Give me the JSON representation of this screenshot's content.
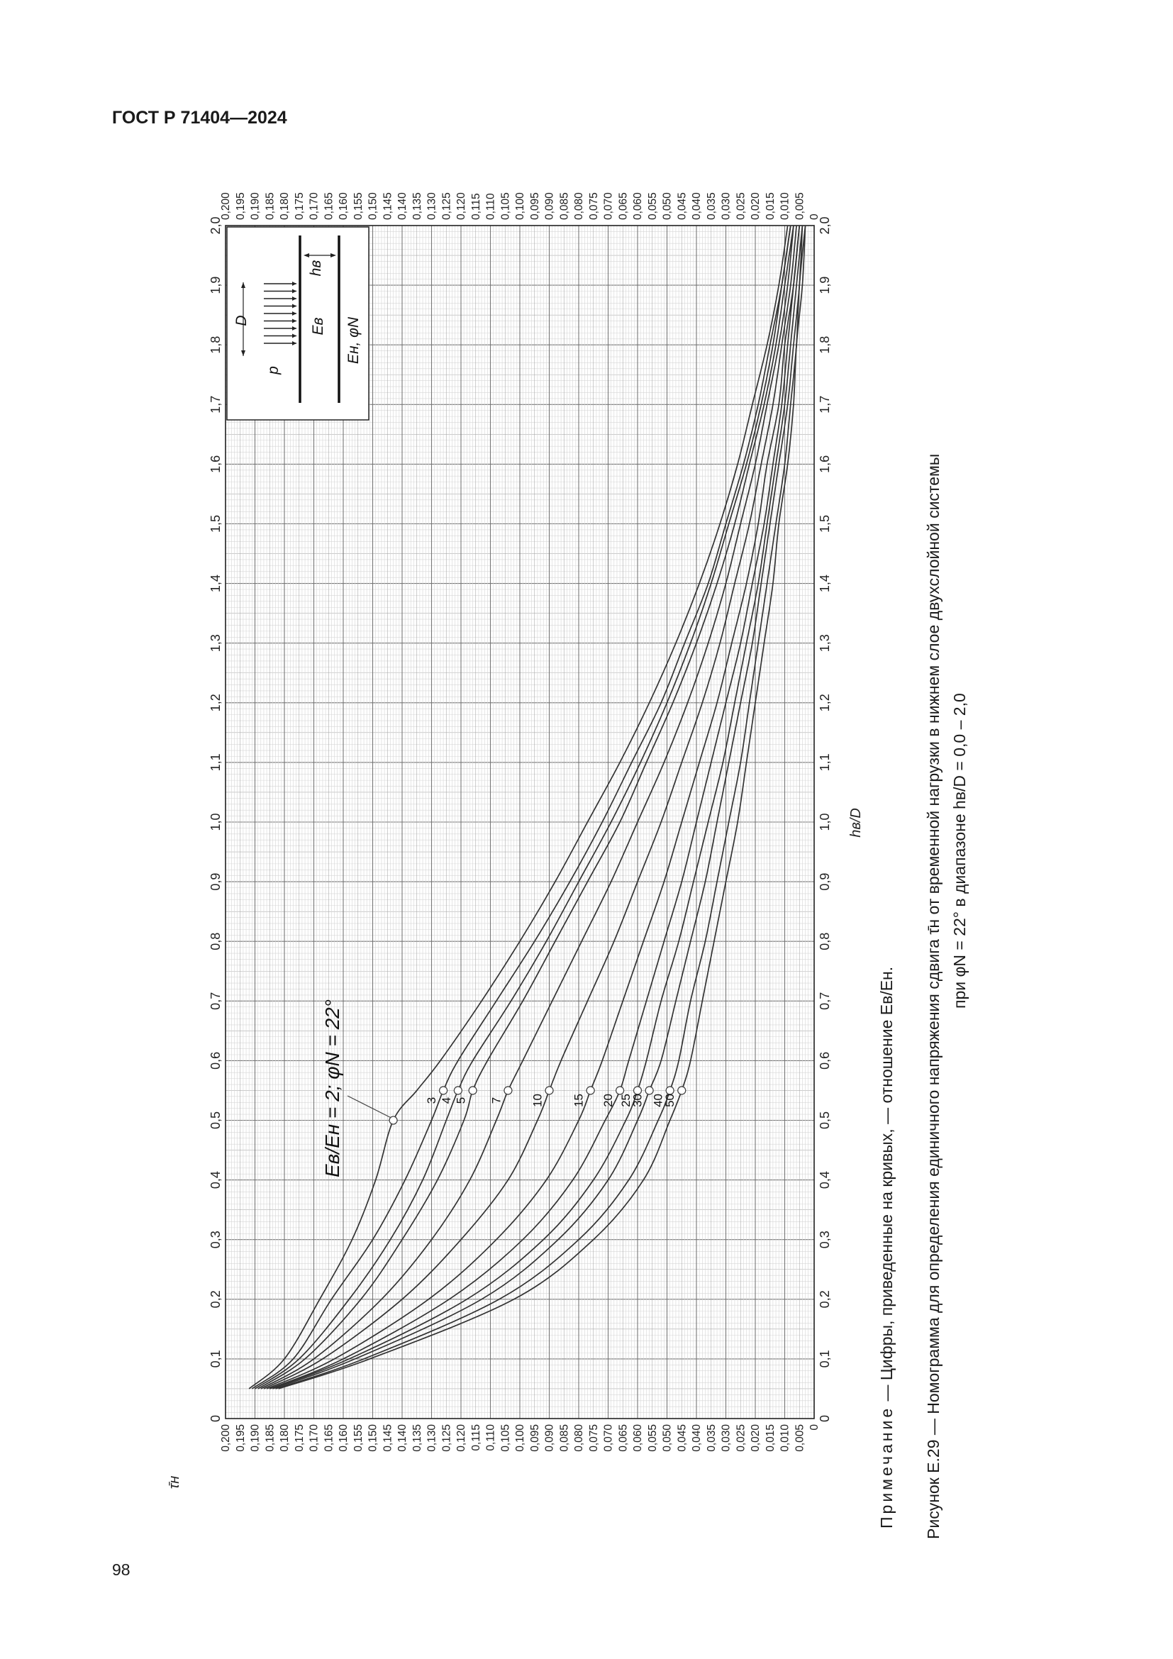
{
  "document": {
    "header": "ГОСТ Р 71404—2024",
    "page_number": "98",
    "note_label": "Примечание",
    "note_text": " — Цифры, приведенные на кривых, — отношение Eв/Eн.",
    "caption_line1": "Рисунок Е.29 — Номограмма для определения единичного напряжения сдвига τ̄н от временной нагрузки в нижнем слое двухслойной системы",
    "caption_line2": "при φN = 22° в диапазоне hв/D = 0,0 – 2,0"
  },
  "inset": {
    "load_label": "p",
    "diameter_label": "D",
    "layer_label": "hв",
    "upper_modulus_label": "Eв",
    "lower_params_label": "Eн, φN"
  },
  "chart_data": {
    "type": "line",
    "title": "",
    "xlabel": "hв/D",
    "ylabel": "τ̄н",
    "xlim": [
      0,
      2.0
    ],
    "ylim": [
      0,
      0.2
    ],
    "x_major_step": 0.1,
    "y_major_step": 0.005,
    "grid": "on (fine minor grid)",
    "legend": "none (curves labelled directly)",
    "annotation": "Eв/Eн = 2; φN = 22°",
    "x_tick_labels": [
      "0",
      "0,1",
      "0,2",
      "0,3",
      "0,4",
      "0,5",
      "0,6",
      "0,7",
      "0,8",
      "0,9",
      "1,0",
      "1,1",
      "1,2",
      "1,3",
      "1,4",
      "1,5",
      "1,6",
      "1,7",
      "1,8",
      "1,9",
      "2,0"
    ],
    "y_tick_labels": [
      "0",
      "0,005",
      "0,010",
      "0,015",
      "0,020",
      "0,025",
      "0,030",
      "0,035",
      "0,040",
      "0,045",
      "0,050",
      "0,055",
      "0,060",
      "0,065",
      "0,070",
      "0,075",
      "0,080",
      "0,085",
      "0,090",
      "0,095",
      "0,100",
      "0,105",
      "0,110",
      "0,115",
      "0,120",
      "0,125",
      "0,130",
      "0,135",
      "0,140",
      "0,145",
      "0,150",
      "0,155",
      "0,160",
      "0,165",
      "0,170",
      "0,175",
      "0,180",
      "0,185",
      "0,190",
      "0,195",
      "0,200"
    ],
    "x": [
      0.05,
      0.1,
      0.2,
      0.3,
      0.4,
      0.5,
      0.55,
      0.6,
      0.7,
      0.8,
      0.9,
      1.0,
      1.1,
      1.2,
      1.3,
      1.4,
      1.5,
      1.6,
      1.7,
      1.8,
      1.9,
      2.0
    ],
    "series": [
      {
        "name": "2",
        "values": [
          0.192,
          0.18,
          0.168,
          0.157,
          0.149,
          0.143,
          0.135,
          0.127,
          0.113,
          0.1,
          0.088,
          0.077,
          0.066,
          0.056,
          0.047,
          0.039,
          0.032,
          0.026,
          0.021,
          0.016,
          0.012,
          0.009
        ]
      },
      {
        "name": "3",
        "values": [
          0.191,
          0.177,
          0.164,
          0.15,
          0.139,
          0.13,
          0.126,
          0.121,
          0.108,
          0.095,
          0.083,
          0.072,
          0.062,
          0.052,
          0.044,
          0.036,
          0.03,
          0.024,
          0.019,
          0.015,
          0.011,
          0.008
        ]
      },
      {
        "name": "4",
        "values": [
          0.19,
          0.175,
          0.158,
          0.144,
          0.133,
          0.125,
          0.121,
          0.116,
          0.103,
          0.091,
          0.08,
          0.069,
          0.059,
          0.05,
          0.042,
          0.035,
          0.029,
          0.023,
          0.018,
          0.014,
          0.011,
          0.008
        ]
      },
      {
        "name": "5",
        "values": [
          0.189,
          0.173,
          0.154,
          0.14,
          0.128,
          0.119,
          0.116,
          0.111,
          0.099,
          0.088,
          0.077,
          0.066,
          0.057,
          0.048,
          0.04,
          0.033,
          0.027,
          0.022,
          0.017,
          0.013,
          0.01,
          0.007
        ]
      },
      {
        "name": "7",
        "values": [
          0.188,
          0.17,
          0.147,
          0.13,
          0.117,
          0.108,
          0.104,
          0.099,
          0.089,
          0.079,
          0.069,
          0.06,
          0.051,
          0.043,
          0.036,
          0.03,
          0.025,
          0.02,
          0.016,
          0.012,
          0.009,
          0.007
        ]
      },
      {
        "name": "10",
        "values": [
          0.187,
          0.167,
          0.14,
          0.12,
          0.104,
          0.094,
          0.09,
          0.086,
          0.077,
          0.068,
          0.06,
          0.052,
          0.045,
          0.038,
          0.032,
          0.027,
          0.022,
          0.018,
          0.014,
          0.011,
          0.008,
          0.006
        ]
      },
      {
        "name": "15",
        "values": [
          0.186,
          0.163,
          0.131,
          0.108,
          0.091,
          0.08,
          0.076,
          0.072,
          0.065,
          0.058,
          0.051,
          0.045,
          0.039,
          0.033,
          0.028,
          0.023,
          0.019,
          0.016,
          0.012,
          0.01,
          0.007,
          0.005
        ]
      },
      {
        "name": "20",
        "values": [
          0.185,
          0.16,
          0.124,
          0.099,
          0.082,
          0.071,
          0.066,
          0.063,
          0.057,
          0.051,
          0.045,
          0.04,
          0.035,
          0.03,
          0.025,
          0.021,
          0.017,
          0.014,
          0.011,
          0.009,
          0.007,
          0.005
        ]
      },
      {
        "name": "25",
        "values": [
          0.185,
          0.158,
          0.118,
          0.092,
          0.075,
          0.064,
          0.06,
          0.057,
          0.052,
          0.046,
          0.041,
          0.036,
          0.031,
          0.027,
          0.023,
          0.019,
          0.016,
          0.013,
          0.01,
          0.008,
          0.006,
          0.004
        ]
      },
      {
        "name": "30",
        "values": [
          0.184,
          0.156,
          0.113,
          0.087,
          0.07,
          0.06,
          0.056,
          0.052,
          0.047,
          0.042,
          0.037,
          0.033,
          0.029,
          0.025,
          0.021,
          0.018,
          0.015,
          0.012,
          0.009,
          0.007,
          0.005,
          0.004
        ]
      },
      {
        "name": "40",
        "values": [
          0.183,
          0.153,
          0.107,
          0.08,
          0.063,
          0.053,
          0.049,
          0.046,
          0.042,
          0.037,
          0.033,
          0.029,
          0.025,
          0.022,
          0.019,
          0.016,
          0.013,
          0.01,
          0.008,
          0.006,
          0.005,
          0.003
        ]
      },
      {
        "name": "50",
        "values": [
          0.182,
          0.151,
          0.102,
          0.075,
          0.058,
          0.049,
          0.045,
          0.042,
          0.038,
          0.034,
          0.03,
          0.026,
          0.023,
          0.02,
          0.017,
          0.014,
          0.012,
          0.009,
          0.007,
          0.006,
          0.004,
          0.003
        ]
      }
    ]
  }
}
